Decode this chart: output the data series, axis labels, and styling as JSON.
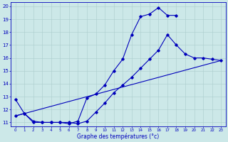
{
  "xlabel": "Graphe des températures (°c)",
  "bg_color": "#cce8e8",
  "line_color": "#0000bb",
  "grid_color": "#aacccc",
  "xlim": [
    -0.5,
    23.5
  ],
  "ylim": [
    10.7,
    20.3
  ],
  "xticks": [
    0,
    1,
    2,
    3,
    4,
    5,
    6,
    7,
    8,
    9,
    10,
    11,
    12,
    13,
    14,
    15,
    16,
    17,
    18,
    19,
    20,
    21,
    22,
    23
  ],
  "yticks": [
    11,
    12,
    13,
    14,
    15,
    16,
    17,
    18,
    19,
    20
  ],
  "line1_x": [
    0,
    1,
    2,
    3,
    4,
    5,
    6,
    7,
    8,
    9,
    10,
    11,
    12,
    13,
    14,
    15,
    16,
    17,
    18
  ],
  "line1_y": [
    12.8,
    11.7,
    11.0,
    11.0,
    11.0,
    11.0,
    10.9,
    11.1,
    12.9,
    13.2,
    13.9,
    15.0,
    15.9,
    17.8,
    19.2,
    19.4,
    19.9,
    19.3,
    19.3
  ],
  "line2_x": [
    0,
    1,
    2,
    3,
    4,
    5,
    6,
    7,
    8,
    9,
    10,
    11,
    12,
    13,
    14,
    15,
    16,
    17,
    18,
    19,
    20,
    21,
    22,
    23
  ],
  "line2_y": [
    11.5,
    11.7,
    11.1,
    11.0,
    11.0,
    11.0,
    11.0,
    10.9,
    11.1,
    11.8,
    12.5,
    13.3,
    13.9,
    14.5,
    15.2,
    15.9,
    16.6,
    17.8,
    17.0,
    16.3,
    16.0,
    16.0,
    15.9,
    15.8
  ],
  "line3_x": [
    0,
    23
  ],
  "line3_y": [
    11.5,
    15.8
  ]
}
